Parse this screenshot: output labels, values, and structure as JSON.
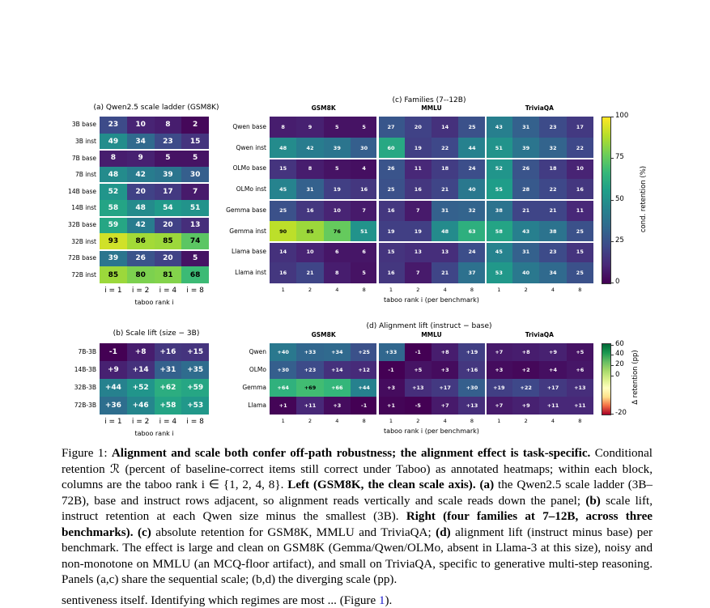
{
  "panel_a": {
    "title": "(a) Qwen2.5 scale ladder (GSM8K)",
    "rows": [
      "3B base",
      "3B inst",
      "7B base",
      "7B inst",
      "14B base",
      "14B inst",
      "32B base",
      "32B inst",
      "72B base",
      "72B inst"
    ],
    "cols": [
      "i = 1",
      "i = 2",
      "i = 4",
      "i = 8"
    ],
    "xlabel": "taboo rank i",
    "values": [
      [
        23,
        10,
        8,
        2
      ],
      [
        49,
        34,
        23,
        15
      ],
      [
        8,
        9,
        5,
        5
      ],
      [
        48,
        42,
        39,
        30
      ],
      [
        52,
        20,
        17,
        7
      ],
      [
        58,
        48,
        54,
        51
      ],
      [
        59,
        42,
        20,
        13
      ],
      [
        93,
        86,
        85,
        74
      ],
      [
        39,
        26,
        20,
        5
      ],
      [
        85,
        80,
        81,
        68
      ]
    ]
  },
  "panel_b": {
    "title": "(b) Scale lift (size − 3B)",
    "rows": [
      "7B-3B",
      "14B-3B",
      "32B-3B",
      "72B-3B"
    ],
    "cols": [
      "i = 1",
      "i = 2",
      "i = 4",
      "i = 8"
    ],
    "xlabel": "taboo rank i",
    "values": [
      [
        "-1",
        "+8",
        "+16",
        "+15"
      ],
      [
        "+9",
        "+14",
        "+31",
        "+35"
      ],
      [
        "+44",
        "+52",
        "+62",
        "+59"
      ],
      [
        "+36",
        "+46",
        "+58",
        "+53"
      ]
    ]
  },
  "panel_c": {
    "title": "(c) Families (7--12B)",
    "benchmarks": [
      "GSM8K",
      "MMLU",
      "TriviaQA"
    ],
    "rows": [
      "Qwen base",
      "Qwen inst",
      "OLMo base",
      "OLMo inst",
      "Gemma base",
      "Gemma inst",
      "Llama base",
      "Llama inst"
    ],
    "cols": [
      "1",
      "2",
      "4",
      "8",
      "1",
      "2",
      "4",
      "8",
      "1",
      "2",
      "4",
      "8"
    ],
    "xlabel": "taboo rank i (per benchmark)",
    "values": [
      [
        8,
        9,
        5,
        5,
        27,
        20,
        14,
        25,
        43,
        31,
        23,
        17
      ],
      [
        48,
        42,
        39,
        30,
        60,
        19,
        22,
        44,
        51,
        39,
        32,
        22
      ],
      [
        15,
        8,
        5,
        4,
        26,
        11,
        18,
        24,
        52,
        26,
        18,
        10
      ],
      [
        45,
        31,
        19,
        16,
        25,
        16,
        21,
        40,
        55,
        28,
        22,
        16
      ],
      [
        25,
        16,
        10,
        7,
        16,
        7,
        31,
        32,
        38,
        21,
        21,
        11
      ],
      [
        90,
        85,
        76,
        51,
        19,
        19,
        48,
        63,
        58,
        43,
        38,
        25
      ],
      [
        14,
        10,
        6,
        6,
        15,
        13,
        13,
        24,
        45,
        31,
        23,
        15
      ],
      [
        16,
        21,
        8,
        5,
        16,
        7,
        21,
        37,
        53,
        40,
        34,
        25
      ]
    ],
    "colorbar": {
      "label": "cond. retention (%)",
      "ticks": [
        "0",
        "25",
        "50",
        "75",
        "100"
      ]
    }
  },
  "panel_d": {
    "title": "(d) Alignment lift (instruct − base)",
    "benchmarks": [
      "GSM8K",
      "MMLU",
      "TriviaQA"
    ],
    "rows": [
      "Qwen",
      "OLMo",
      "Gemma",
      "Llama"
    ],
    "cols": [
      "1",
      "2",
      "4",
      "8",
      "1",
      "2",
      "4",
      "8",
      "1",
      "2",
      "4",
      "8"
    ],
    "xlabel": "taboo rank i (per benchmark)",
    "values": [
      [
        "+40",
        "+33",
        "+34",
        "+25",
        "+33",
        "-1",
        "+8",
        "+19",
        "+7",
        "+8",
        "+9",
        "+5"
      ],
      [
        "+30",
        "+23",
        "+14",
        "+12",
        "-1",
        "+5",
        "+3",
        "+16",
        "+3",
        "+2",
        "+4",
        "+6"
      ],
      [
        "+64",
        "+69",
        "+66",
        "+44",
        "+3",
        "+13",
        "+17",
        "+30",
        "+19",
        "+22",
        "+17",
        "+13"
      ],
      [
        "+1",
        "+11",
        "+3",
        "-1",
        "+1",
        "-5",
        "+7",
        "+13",
        "+7",
        "+9",
        "+11",
        "+11"
      ]
    ],
    "colorbar": {
      "label": "Δ retention (pp)",
      "ticks": [
        "60",
        "40",
        "20",
        "0",
        "-20"
      ]
    }
  },
  "caption": {
    "label": "Figure 1:",
    "bold1": "Alignment and scale both confer off-path robustness; the alignment effect is task-specific.",
    "t1": "Conditional retention ℛ (percent of baseline-correct items still correct under Taboo) as annotated heatmaps; within each block, columns are the taboo rank i ∈ {1, 2, 4, 8}.",
    "bold2": "Left (GSM8K, the clean scale axis).",
    "t2": "(a)",
    "t3": "the Qwen2.5 scale ladder (3B–72B), base and instruct rows adjacent, so alignment reads vertically and scale reads down the panel;",
    "t4": "(b)",
    "t5": "scale lift, instruct retention at each Qwen size minus the smallest (3B).",
    "bold3": "Right (four families at 7–12B, across three benchmarks).",
    "t6": "(c)",
    "t7": "absolute retention for GSM8K, MMLU and TriviaQA;",
    "t8": "(d)",
    "t9": "alignment lift (instruct minus base) per benchmark. The effect is large and clean on GSM8K (Gemma/Qwen/OLMo, absent in Llama-3 at this size), noisy and non-monotone on MMLU (an MCQ-floor artifact), and small on TriviaQA, specific to generative multi-step reasoning. Panels (a,c) share the sequential scale; (b,d) the diverging scale (pp)."
  },
  "trailing_text": {
    "pre": "sentiveness itself. Identifying which regimes are most ...",
    "link": "1"
  },
  "colors": {
    "viridis": [
      "#440154",
      "#482878",
      "#3e4989",
      "#31688e",
      "#26828e",
      "#1f9e89",
      "#35b779",
      "#6ece58",
      "#b5de2b",
      "#fde725"
    ],
    "diverging": [
      "#a50026",
      "#f46d43",
      "#fee08b",
      "#ffffbf",
      "#d9ef8b",
      "#a6d96a",
      "#66bd63",
      "#1a9850",
      "#006837"
    ]
  }
}
